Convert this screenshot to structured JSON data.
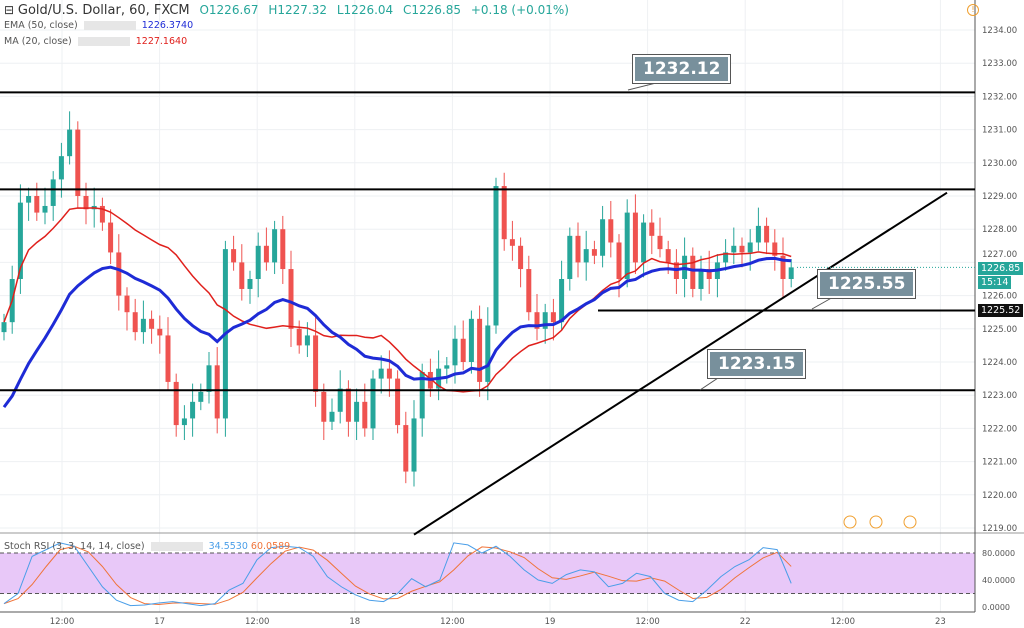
{
  "header": {
    "symbol": "Gold/U.S. Dollar, 60, FXCM",
    "open": "O1226.67",
    "high": "H1227.32",
    "low": "L1226.04",
    "close": "C1226.85",
    "change": "+0.18 (+0.01%)"
  },
  "indicators": {
    "ema_label": "EMA (50, close)",
    "ema_value": "1226.3740",
    "ma_label": "MA (20, close)",
    "ma_value": "1227.1640",
    "stoch_label": "Stoch RSI (3, 3, 14, 14, close)",
    "stoch_k": "34.5530",
    "stoch_d": "60.0589"
  },
  "badges": {
    "last_price": "1226.85",
    "countdown": "15:14",
    "level": "1225.52"
  },
  "annotations": {
    "resistance": "1232.12",
    "support1": "1225.55",
    "support2": "1223.15"
  },
  "colors": {
    "up": "#26a69a",
    "down": "#ef5350",
    "ema": "#1e2bd6",
    "ma": "#e0201c",
    "stoch_k": "#4a9ee8",
    "stoch_d": "#f0743a",
    "band": "#e8c8f8"
  },
  "chart_data": {
    "type": "candlestick",
    "title": "Gold/U.S. Dollar, 60, FXCM",
    "ylim": [
      1218.7,
      1234.2
    ],
    "y_ticks": [
      "1234.00",
      "1233.00",
      "1232.00",
      "1231.00",
      "1230.00",
      "1229.00",
      "1228.00",
      "1227.00",
      "1226.00",
      "1225.00",
      "1224.00",
      "1223.00",
      "1222.00",
      "1221.00",
      "1220.00",
      "1219.00"
    ],
    "x_ticks": [
      "12:00",
      "17",
      "12:00",
      "18",
      "12:00",
      "19",
      "12:00",
      "22",
      "12:00",
      "23"
    ],
    "closes": [
      1225.2,
      1226.5,
      1228.8,
      1229.0,
      1228.5,
      1228.7,
      1229.5,
      1230.2,
      1231.0,
      1229.0,
      1228.6,
      1228.7,
      1228.2,
      1227.3,
      1226.0,
      1225.5,
      1224.9,
      1225.3,
      1225.0,
      1224.8,
      1223.4,
      1222.1,
      1222.3,
      1222.8,
      1223.1,
      1223.9,
      1222.3,
      1227.4,
      1227.0,
      1226.2,
      1226.5,
      1227.5,
      1227.0,
      1228.0,
      1226.8,
      1225.0,
      1224.5,
      1224.8,
      1223.1,
      1222.2,
      1222.5,
      1223.2,
      1222.2,
      1222.8,
      1222.0,
      1223.5,
      1223.8,
      1223.5,
      1222.1,
      1220.7,
      1222.3,
      1223.7,
      1223.2,
      1223.8,
      1223.9,
      1224.7,
      1224.0,
      1225.3,
      1223.4,
      1225.1,
      1229.3,
      1227.7,
      1227.5,
      1226.8,
      1225.5,
      1225.0,
      1225.5,
      1225.2,
      1226.5,
      1227.8,
      1227.0,
      1227.4,
      1227.2,
      1228.3,
      1227.6,
      1226.5,
      1228.5,
      1227.0,
      1228.2,
      1227.8,
      1227.4,
      1227.0,
      1226.5,
      1227.2,
      1226.2,
      1226.8,
      1226.5,
      1227.0,
      1227.3,
      1227.5,
      1227.3,
      1227.6,
      1228.1,
      1227.6,
      1227.2,
      1226.5,
      1226.85
    ],
    "levels": [
      1232.12,
      1229.2,
      1223.15
    ],
    "segment_level": 1225.55,
    "trendline": [
      [
        50,
        1218.8
      ],
      [
        115,
        1229.1
      ]
    ],
    "stoch": {
      "ylim": [
        0,
        100
      ],
      "ticks": [
        "80.0000",
        "40.0000",
        "0.0000"
      ],
      "band": [
        20,
        80
      ],
      "k": [
        5,
        20,
        75,
        85,
        95,
        90,
        60,
        30,
        10,
        2,
        3,
        6,
        8,
        5,
        2,
        5,
        25,
        35,
        70,
        88,
        90,
        88,
        75,
        45,
        30,
        18,
        10,
        8,
        20,
        42,
        30,
        40,
        95,
        92,
        80,
        90,
        75,
        55,
        40,
        35,
        48,
        55,
        52,
        30,
        35,
        50,
        45,
        20,
        10,
        8,
        25,
        45,
        60,
        70,
        88,
        85,
        35
      ]
    }
  }
}
